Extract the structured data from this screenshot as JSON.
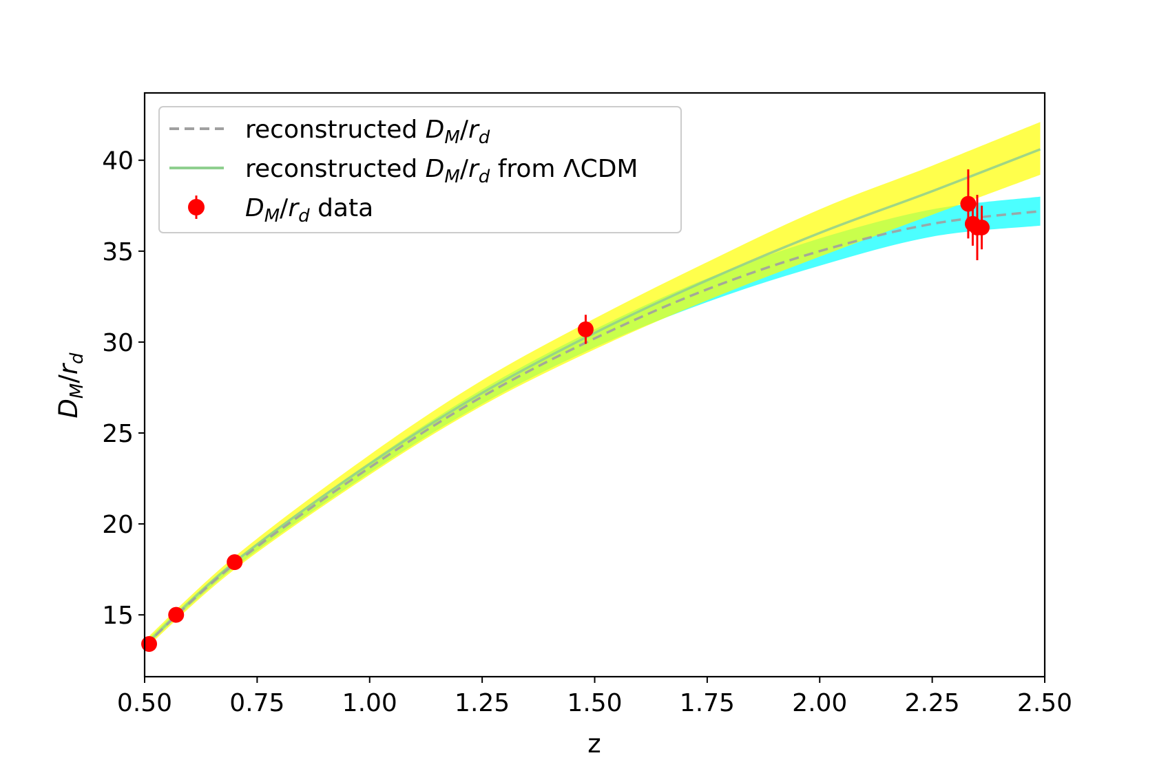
{
  "chart_data": {
    "type": "line",
    "xlabel": "z",
    "ylabel": "D_M/r_d",
    "xlim": [
      0.5,
      2.5
    ],
    "ylim": [
      11.6,
      43.7
    ],
    "xticks": [
      0.5,
      0.75,
      1.0,
      1.25,
      1.5,
      1.75,
      2.0,
      2.25,
      2.5
    ],
    "xtick_labels": [
      "0.50",
      "0.75",
      "1.00",
      "1.25",
      "1.50",
      "1.75",
      "2.00",
      "2.25",
      "2.50"
    ],
    "yticks": [
      15,
      20,
      25,
      30,
      35,
      40
    ],
    "ytick_labels": [
      "15",
      "20",
      "25",
      "30",
      "35",
      "40"
    ],
    "grid": false,
    "legend_position": "top-left",
    "colors": {
      "band_reconstructed": "#00ffff",
      "band_lcdm": "#ffff00",
      "line_reconstructed": "#a0a0a0",
      "line_lcdm": "#8fcf8f",
      "data_points": "#ff0000"
    },
    "series": [
      {
        "name": "reconstructed D_M/r_d",
        "style": "dashed",
        "x": [
          0.5,
          0.7,
          1.0,
          1.25,
          1.5,
          1.75,
          2.0,
          2.25,
          2.49
        ],
        "y": [
          13.3,
          17.8,
          23.1,
          27.0,
          30.2,
          32.9,
          35.0,
          36.5,
          37.2
        ],
        "band": {
          "x": [
            0.5,
            0.7,
            1.0,
            1.25,
            1.5,
            1.75,
            2.0,
            2.25,
            2.49
          ],
          "lower": [
            13.2,
            17.6,
            22.8,
            26.6,
            29.7,
            32.2,
            34.2,
            35.8,
            36.4
          ],
          "upper": [
            13.5,
            18.0,
            23.4,
            27.4,
            30.7,
            33.5,
            35.7,
            37.3,
            38.0
          ]
        }
      },
      {
        "name": "reconstructed D_M/r_d from ΛCDM",
        "style": "solid",
        "x": [
          0.5,
          0.7,
          1.0,
          1.25,
          1.5,
          1.75,
          2.0,
          2.25,
          2.49
        ],
        "y": [
          13.3,
          17.9,
          23.3,
          27.2,
          30.5,
          33.4,
          36.0,
          38.3,
          40.6
        ],
        "band": {
          "x": [
            0.5,
            0.7,
            1.0,
            1.25,
            1.5,
            1.75,
            2.0,
            2.25,
            2.49
          ],
          "lower": [
            13.1,
            17.5,
            22.7,
            26.5,
            29.6,
            32.3,
            34.7,
            37.0,
            39.2
          ],
          "upper": [
            13.6,
            18.2,
            23.8,
            27.9,
            31.3,
            34.4,
            37.3,
            39.7,
            42.1
          ]
        }
      },
      {
        "name": "D_M/r_d data",
        "style": "errorbar",
        "points": [
          {
            "x": 0.51,
            "y": 13.4,
            "err": 0.2
          },
          {
            "x": 0.57,
            "y": 15.0,
            "err": 0.2
          },
          {
            "x": 0.7,
            "y": 17.9,
            "err": 0.3
          },
          {
            "x": 1.48,
            "y": 30.7,
            "err": 0.8
          },
          {
            "x": 2.33,
            "y": 37.6,
            "err": 1.9
          },
          {
            "x": 2.34,
            "y": 36.5,
            "err": 1.2
          },
          {
            "x": 2.35,
            "y": 36.3,
            "err": 1.8
          },
          {
            "x": 2.36,
            "y": 36.3,
            "err": 1.2
          }
        ]
      }
    ]
  }
}
